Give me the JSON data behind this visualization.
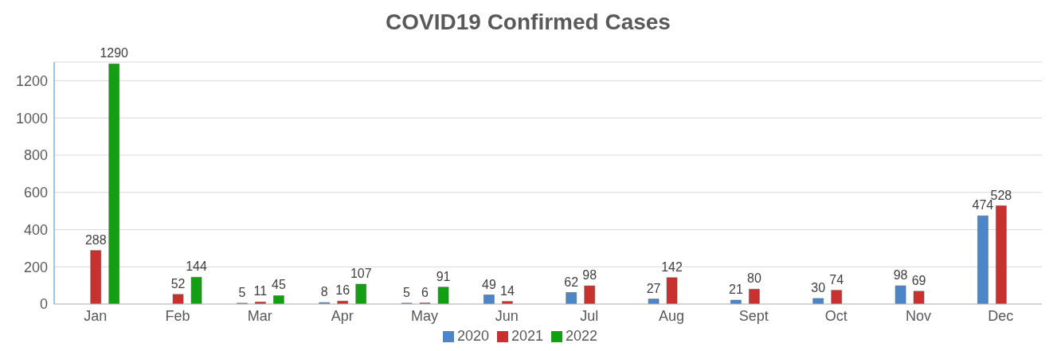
{
  "chart_data": {
    "type": "bar",
    "title": "COVID19 Confirmed Cases",
    "categories": [
      "Jan",
      "Feb",
      "Mar",
      "Apr",
      "May",
      "Jun",
      "Jul",
      "Aug",
      "Sept",
      "Oct",
      "Nov",
      "Dec"
    ],
    "series": [
      {
        "name": "2020",
        "color": "#4a86c8",
        "values": [
          null,
          null,
          5,
          8,
          5,
          49,
          62,
          27,
          21,
          30,
          98,
          474
        ]
      },
      {
        "name": "2021",
        "color": "#c8312e",
        "values": [
          288,
          52,
          11,
          16,
          6,
          14,
          98,
          142,
          80,
          74,
          69,
          528
        ]
      },
      {
        "name": "2022",
        "color": "#12a012",
        "values": [
          1290,
          144,
          45,
          107,
          91,
          null,
          null,
          null,
          null,
          null,
          null,
          null
        ]
      }
    ],
    "ylim": [
      0,
      1300
    ],
    "yticks": [
      0,
      200,
      400,
      600,
      800,
      1000,
      1200
    ],
    "grid": "y",
    "legend": "bottom",
    "data_labels": true
  }
}
